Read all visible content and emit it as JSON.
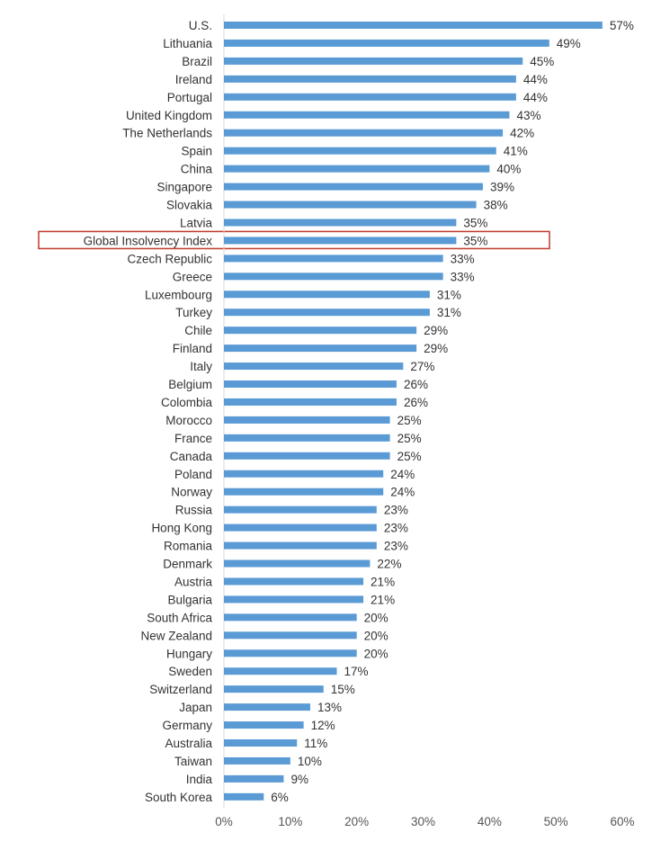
{
  "chart_data": {
    "type": "bar",
    "orientation": "horizontal",
    "categories": [
      "U.S.",
      "Lithuania",
      "Brazil",
      "Ireland",
      "Portugal",
      "United Kingdom",
      "The Netherlands",
      "Spain",
      "China",
      "Singapore",
      "Slovakia",
      "Latvia",
      "Global Insolvency Index",
      "Czech Republic",
      "Greece",
      "Luxembourg",
      "Turkey",
      "Chile",
      "Finland",
      "Italy",
      "Belgium",
      "Colombia",
      "Morocco",
      "France",
      "Canada",
      "Poland",
      "Norway",
      "Russia",
      "Hong Kong",
      "Romania",
      "Denmark",
      "Austria",
      "Bulgaria",
      "South Africa",
      "New Zealand",
      "Hungary",
      "Sweden",
      "Switzerland",
      "Japan",
      "Germany",
      "Australia",
      "Taiwan",
      "India",
      "South Korea"
    ],
    "values": [
      57,
      49,
      45,
      44,
      44,
      43,
      42,
      41,
      40,
      39,
      38,
      35,
      35,
      33,
      33,
      31,
      31,
      29,
      29,
      27,
      26,
      26,
      25,
      25,
      25,
      24,
      24,
      23,
      23,
      23,
      22,
      21,
      21,
      20,
      20,
      20,
      17,
      15,
      13,
      12,
      11,
      10,
      9,
      6
    ],
    "value_labels": [
      "57%",
      "49%",
      "45%",
      "44%",
      "44%",
      "43%",
      "42%",
      "41%",
      "40%",
      "39%",
      "38%",
      "35%",
      "35%",
      "33%",
      "33%",
      "31%",
      "31%",
      "29%",
      "29%",
      "27%",
      "26%",
      "26%",
      "25%",
      "25%",
      "25%",
      "24%",
      "24%",
      "23%",
      "23%",
      "23%",
      "22%",
      "21%",
      "21%",
      "20%",
      "20%",
      "20%",
      "17%",
      "15%",
      "13%",
      "12%",
      "11%",
      "10%",
      "9%",
      "6%"
    ],
    "highlighted_category": "Global Insolvency Index",
    "xlim": [
      0,
      60
    ],
    "x_ticks": [
      0,
      10,
      20,
      30,
      40,
      50,
      60
    ],
    "x_tick_labels": [
      "0%",
      "10%",
      "20%",
      "30%",
      "40%",
      "50%",
      "60%"
    ],
    "grid": false,
    "legend": "none",
    "colors": {
      "bar": "#5b9bd5",
      "highlight_box": "#c0392b",
      "axis": "#d9d9d9",
      "text": "#333333"
    }
  }
}
